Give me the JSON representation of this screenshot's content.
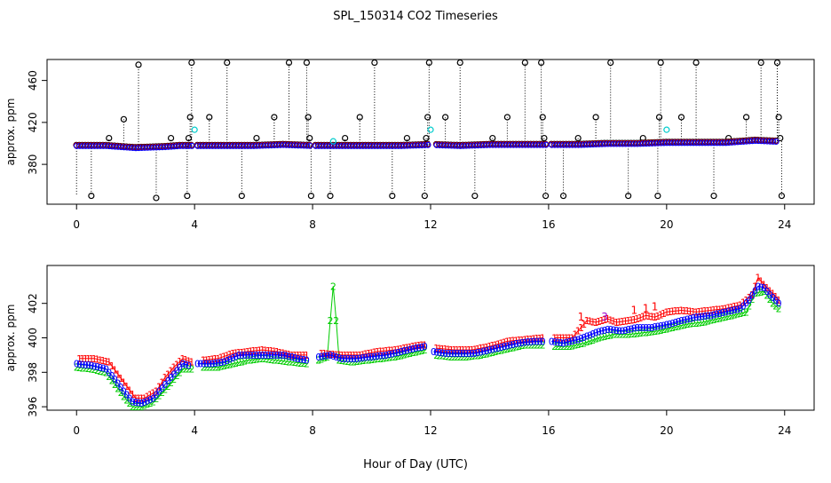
{
  "title": "SPL_150314  CO2 Timeseries",
  "xlabel": "Hour of Day (UTC)",
  "colors": {
    "black": "#000000",
    "blue": "#0000ff",
    "red": "#ff0000",
    "green": "#00cc00",
    "cyan": "#00cccc",
    "purple": "#9900cc"
  },
  "chart_data": [
    {
      "type": "scatter",
      "name": "top-panel",
      "ylabel": "approx. ppm",
      "xlim": [
        -1.0,
        25.0
      ],
      "ylim": [
        342.0,
        480.0
      ],
      "xticks": [
        "0",
        "4",
        "8",
        "12",
        "16",
        "20",
        "24"
      ],
      "yticks": [
        "380",
        "420",
        "460"
      ],
      "ytick_values": [
        380,
        420,
        460
      ],
      "grid": false,
      "baseline_points": [
        [
          0.0,
          398
        ],
        [
          1.0,
          398
        ],
        [
          1.5,
          397
        ],
        [
          2.0,
          396
        ],
        [
          3.0,
          397
        ],
        [
          3.5,
          398
        ],
        [
          4.0,
          398
        ],
        [
          5.0,
          398
        ],
        [
          6.0,
          398
        ],
        [
          7.0,
          399
        ],
        [
          8.0,
          398
        ],
        [
          9.0,
          398
        ],
        [
          10.0,
          398
        ],
        [
          11.0,
          398
        ],
        [
          12.0,
          399
        ],
        [
          13.0,
          398
        ],
        [
          14.0,
          399
        ],
        [
          15.0,
          399
        ],
        [
          16.0,
          399
        ],
        [
          17.0,
          399
        ],
        [
          18.0,
          400
        ],
        [
          19.0,
          400
        ],
        [
          20.0,
          401
        ],
        [
          21.0,
          401
        ],
        [
          22.0,
          401
        ],
        [
          23.0,
          403
        ],
        [
          23.8,
          402
        ]
      ],
      "spikes": [
        {
          "x": 0.5,
          "y": 350
        },
        {
          "x": 1.1,
          "y": 405
        },
        {
          "x": 1.6,
          "y": 423
        },
        {
          "x": 2.1,
          "y": 475
        },
        {
          "x": 2.7,
          "y": 348
        },
        {
          "x": 3.2,
          "y": 405
        },
        {
          "x": 3.75,
          "y": 350
        },
        {
          "x": 3.8,
          "y": 405
        },
        {
          "x": 3.85,
          "y": 425
        },
        {
          "x": 3.9,
          "y": 477
        },
        {
          "x": 4.5,
          "y": 425
        },
        {
          "x": 5.1,
          "y": 477
        },
        {
          "x": 5.6,
          "y": 350
        },
        {
          "x": 6.1,
          "y": 405
        },
        {
          "x": 6.7,
          "y": 425
        },
        {
          "x": 7.2,
          "y": 477
        },
        {
          "x": 7.8,
          "y": 477
        },
        {
          "x": 7.85,
          "y": 425
        },
        {
          "x": 7.9,
          "y": 405
        },
        {
          "x": 7.95,
          "y": 350
        },
        {
          "x": 8.6,
          "y": 350
        },
        {
          "x": 9.1,
          "y": 405
        },
        {
          "x": 9.6,
          "y": 425
        },
        {
          "x": 10.1,
          "y": 477
        },
        {
          "x": 10.7,
          "y": 350
        },
        {
          "x": 11.2,
          "y": 405
        },
        {
          "x": 11.8,
          "y": 350
        },
        {
          "x": 11.85,
          "y": 405
        },
        {
          "x": 11.9,
          "y": 425
        },
        {
          "x": 11.95,
          "y": 477
        },
        {
          "x": 12.5,
          "y": 425
        },
        {
          "x": 13.0,
          "y": 477
        },
        {
          "x": 13.5,
          "y": 350
        },
        {
          "x": 14.1,
          "y": 405
        },
        {
          "x": 14.6,
          "y": 425
        },
        {
          "x": 15.2,
          "y": 477
        },
        {
          "x": 15.75,
          "y": 477
        },
        {
          "x": 15.8,
          "y": 425
        },
        {
          "x": 15.85,
          "y": 405
        },
        {
          "x": 15.9,
          "y": 350
        },
        {
          "x": 16.5,
          "y": 350
        },
        {
          "x": 17.0,
          "y": 405
        },
        {
          "x": 17.6,
          "y": 425
        },
        {
          "x": 18.1,
          "y": 477
        },
        {
          "x": 18.7,
          "y": 350
        },
        {
          "x": 19.2,
          "y": 405
        },
        {
          "x": 19.7,
          "y": 350
        },
        {
          "x": 19.75,
          "y": 425
        },
        {
          "x": 19.8,
          "y": 477
        },
        {
          "x": 20.5,
          "y": 425
        },
        {
          "x": 21.0,
          "y": 477
        },
        {
          "x": 21.6,
          "y": 350
        },
        {
          "x": 22.1,
          "y": 405
        },
        {
          "x": 22.7,
          "y": 425
        },
        {
          "x": 23.2,
          "y": 477
        },
        {
          "x": 23.75,
          "y": 477
        },
        {
          "x": 23.8,
          "y": 425
        },
        {
          "x": 23.85,
          "y": 405
        },
        {
          "x": 23.9,
          "y": 350
        }
      ],
      "cyan_points": [
        {
          "x": 4.0,
          "y": 413
        },
        {
          "x": 8.7,
          "y": 402
        },
        {
          "x": 12.0,
          "y": 413
        },
        {
          "x": 20.0,
          "y": 413
        }
      ]
    },
    {
      "type": "line",
      "name": "bottom-panel",
      "ylabel": "approx. ppm",
      "xlim": [
        -1.0,
        25.0
      ],
      "ylim": [
        395.8,
        404.2
      ],
      "xticks": [
        "0",
        "4",
        "8",
        "12",
        "16",
        "20",
        "24"
      ],
      "yticks": [
        "396",
        "398",
        "400",
        "402"
      ],
      "ytick_values": [
        396,
        398,
        400,
        402
      ],
      "grid": false,
      "series": [
        {
          "name": "blue",
          "marker": "0",
          "color": "#0000ff",
          "points": [
            [
              0.0,
              398.5
            ],
            [
              0.5,
              398.4
            ],
            [
              1.0,
              398.2
            ],
            [
              1.3,
              397.6
            ],
            [
              1.6,
              396.9
            ],
            [
              1.9,
              396.3
            ],
            [
              2.2,
              396.2
            ],
            [
              2.6,
              396.5
            ],
            [
              3.0,
              397.3
            ],
            [
              3.3,
              397.9
            ],
            [
              3.6,
              398.5
            ],
            [
              3.8,
              398.4
            ],
            [
              4.1,
              398.5
            ],
            [
              4.6,
              398.5
            ],
            [
              5.0,
              398.6
            ],
            [
              5.5,
              399.0
            ],
            [
              6.0,
              399.0
            ],
            [
              6.5,
              399.0
            ],
            [
              7.0,
              399.0
            ],
            [
              7.5,
              398.8
            ],
            [
              7.8,
              398.7
            ],
            [
              8.2,
              398.9
            ],
            [
              8.6,
              399.0
            ],
            [
              9.0,
              398.8
            ],
            [
              9.5,
              398.8
            ],
            [
              10.0,
              398.9
            ],
            [
              10.5,
              399.0
            ],
            [
              11.0,
              399.2
            ],
            [
              11.5,
              399.4
            ],
            [
              11.8,
              399.5
            ],
            [
              12.1,
              399.2
            ],
            [
              12.5,
              399.1
            ],
            [
              13.0,
              399.1
            ],
            [
              13.5,
              399.1
            ],
            [
              14.0,
              399.3
            ],
            [
              14.5,
              399.5
            ],
            [
              15.0,
              399.7
            ],
            [
              15.5,
              399.8
            ],
            [
              15.8,
              399.8
            ],
            [
              16.1,
              399.8
            ],
            [
              16.5,
              399.7
            ],
            [
              17.0,
              399.9
            ],
            [
              17.3,
              400.1
            ],
            [
              17.6,
              400.3
            ],
            [
              18.0,
              400.5
            ],
            [
              18.5,
              400.4
            ],
            [
              19.0,
              400.6
            ],
            [
              19.5,
              400.6
            ],
            [
              19.8,
              400.7
            ],
            [
              20.1,
              400.8
            ],
            [
              20.5,
              401.0
            ],
            [
              21.0,
              401.2
            ],
            [
              21.5,
              401.3
            ],
            [
              22.0,
              401.5
            ],
            [
              22.5,
              401.7
            ],
            [
              22.8,
              402.2
            ],
            [
              23.1,
              403.0
            ],
            [
              23.3,
              402.9
            ],
            [
              23.5,
              402.5
            ],
            [
              23.8,
              402.0
            ]
          ]
        },
        {
          "name": "red",
          "marker": "1",
          "color": "#ff0000",
          "points": [
            [
              0.1,
              398.8
            ],
            [
              0.6,
              398.8
            ],
            [
              1.1,
              398.6
            ],
            [
              1.4,
              397.9
            ],
            [
              1.7,
              397.2
            ],
            [
              2.0,
              396.5
            ],
            [
              2.3,
              396.5
            ],
            [
              2.7,
              396.9
            ],
            [
              3.0,
              397.7
            ],
            [
              3.3,
              398.3
            ],
            [
              3.6,
              398.8
            ],
            [
              3.9,
              398.6
            ],
            [
              4.3,
              398.7
            ],
            [
              4.8,
              398.8
            ],
            [
              5.3,
              399.1
            ],
            [
              5.8,
              399.2
            ],
            [
              6.3,
              399.3
            ],
            [
              6.8,
              399.2
            ],
            [
              7.3,
              399.0
            ],
            [
              7.8,
              399.0
            ],
            [
              8.3,
              399.1
            ],
            [
              9.0,
              399.0
            ],
            [
              9.6,
              399.0
            ],
            [
              10.2,
              399.2
            ],
            [
              10.8,
              399.3
            ],
            [
              11.4,
              399.5
            ],
            [
              11.8,
              399.6
            ],
            [
              12.2,
              399.4
            ],
            [
              12.8,
              399.3
            ],
            [
              13.4,
              399.3
            ],
            [
              14.0,
              399.5
            ],
            [
              14.6,
              399.8
            ],
            [
              15.2,
              399.9
            ],
            [
              15.8,
              400.0
            ],
            [
              16.2,
              400.0
            ],
            [
              16.8,
              400.0
            ],
            [
              17.3,
              401.0
            ],
            [
              17.6,
              400.9
            ],
            [
              18.0,
              401.1
            ],
            [
              18.3,
              400.9
            ],
            [
              18.7,
              401.0
            ],
            [
              19.0,
              401.1
            ],
            [
              19.3,
              401.3
            ],
            [
              19.6,
              401.2
            ],
            [
              20.0,
              401.5
            ],
            [
              20.5,
              401.6
            ],
            [
              21.0,
              401.5
            ],
            [
              21.5,
              401.6
            ],
            [
              22.0,
              401.7
            ],
            [
              22.5,
              401.9
            ],
            [
              22.9,
              402.5
            ],
            [
              23.1,
              403.5
            ],
            [
              23.4,
              402.9
            ],
            [
              23.7,
              402.4
            ],
            [
              23.8,
              402.2
            ]
          ]
        },
        {
          "name": "green",
          "marker": "2",
          "color": "#00cc00",
          "points": [
            [
              0.0,
              398.3
            ],
            [
              0.5,
              398.2
            ],
            [
              1.0,
              398.0
            ],
            [
              1.3,
              397.3
            ],
            [
              1.6,
              396.6
            ],
            [
              1.9,
              396.0
            ],
            [
              2.2,
              396.0
            ],
            [
              2.6,
              396.3
            ],
            [
              3.0,
              397.0
            ],
            [
              3.3,
              397.6
            ],
            [
              3.6,
              398.2
            ],
            [
              3.9,
              398.2
            ],
            [
              4.3,
              398.3
            ],
            [
              4.8,
              398.3
            ],
            [
              5.3,
              398.5
            ],
            [
              5.8,
              398.7
            ],
            [
              6.3,
              398.8
            ],
            [
              6.8,
              398.7
            ],
            [
              7.3,
              398.6
            ],
            [
              7.8,
              398.5
            ],
            [
              8.2,
              398.7
            ],
            [
              8.5,
              398.9
            ],
            [
              8.6,
              401.0
            ],
            [
              8.7,
              403.0
            ],
            [
              8.8,
              401.0
            ],
            [
              8.9,
              398.7
            ],
            [
              9.3,
              398.6
            ],
            [
              9.8,
              398.7
            ],
            [
              10.3,
              398.8
            ],
            [
              10.8,
              398.9
            ],
            [
              11.3,
              399.1
            ],
            [
              11.8,
              399.3
            ],
            [
              12.2,
              399.0
            ],
            [
              12.7,
              398.9
            ],
            [
              13.2,
              398.9
            ],
            [
              13.7,
              399.0
            ],
            [
              14.2,
              399.2
            ],
            [
              14.7,
              399.4
            ],
            [
              15.2,
              399.6
            ],
            [
              15.8,
              399.6
            ],
            [
              16.2,
              399.5
            ],
            [
              16.7,
              399.5
            ],
            [
              17.2,
              399.7
            ],
            [
              17.7,
              400.0
            ],
            [
              18.2,
              400.2
            ],
            [
              18.7,
              400.2
            ],
            [
              19.2,
              400.3
            ],
            [
              19.7,
              400.4
            ],
            [
              20.2,
              400.6
            ],
            [
              20.7,
              400.8
            ],
            [
              21.2,
              400.9
            ],
            [
              21.7,
              401.1
            ],
            [
              22.2,
              401.3
            ],
            [
              22.7,
              401.5
            ],
            [
              23.0,
              402.6
            ],
            [
              23.3,
              402.7
            ],
            [
              23.6,
              402.0
            ],
            [
              23.8,
              401.7
            ]
          ]
        }
      ],
      "extra_markers": [
        {
          "label": "3",
          "x": 17.9,
          "y": 401.2,
          "color": "#9900cc"
        },
        {
          "label": "1",
          "x": 17.1,
          "y": 401.2,
          "color": "#ff0000"
        },
        {
          "label": "1",
          "x": 18.9,
          "y": 401.6,
          "color": "#ff0000"
        },
        {
          "label": "1",
          "x": 19.3,
          "y": 401.7,
          "color": "#ff0000"
        },
        {
          "label": "1",
          "x": 19.6,
          "y": 401.8,
          "color": "#ff0000"
        }
      ]
    }
  ]
}
